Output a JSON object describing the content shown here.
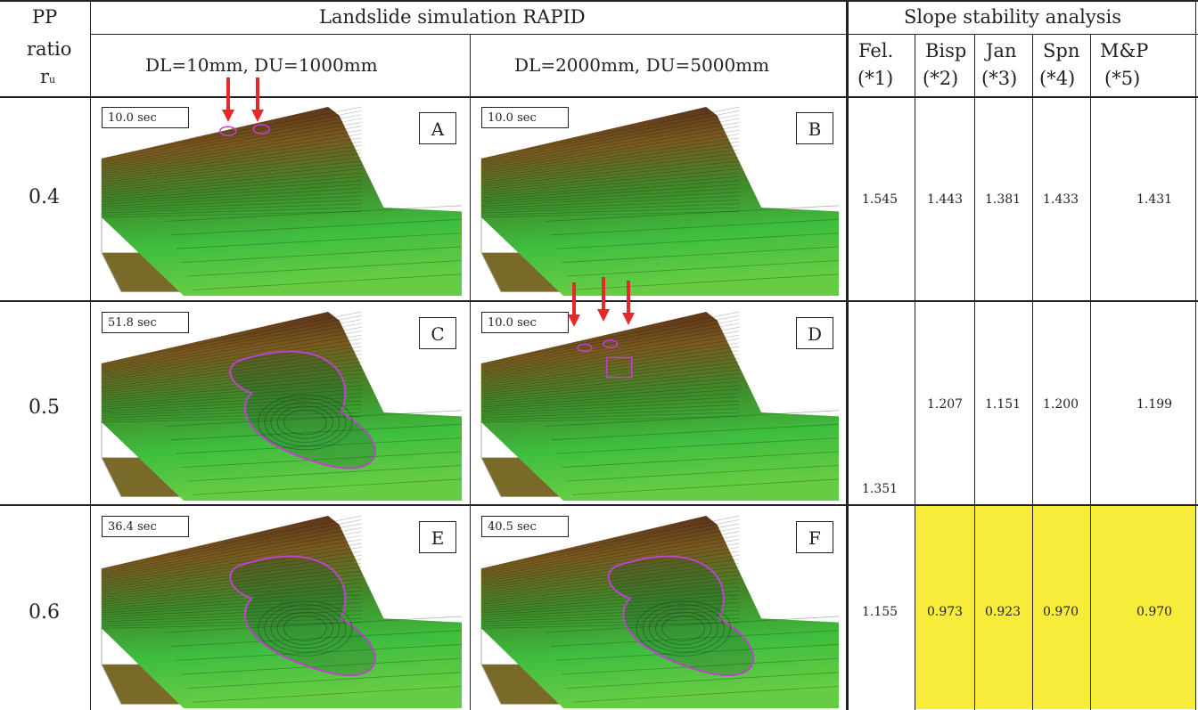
{
  "header": {
    "pp_line1": "PP",
    "pp_line2": "ratio",
    "pp_line3": "r",
    "pp_sub": "u",
    "sim_title": "Landslide simulation RAPID",
    "slope_title": "Slope stability analysis",
    "col_dl1": "DL=10mm, DU=1000mm",
    "col_dl2": "DL=2000mm, DU=5000mm",
    "methods": [
      {
        "name": "Fel.",
        "ref": "(*1)"
      },
      {
        "name": "Bisp",
        "ref": "(*2)"
      },
      {
        "name": "Jan",
        "ref": "(*3)"
      },
      {
        "name": "Spn",
        "ref": "(*4)"
      },
      {
        "name": "M&P",
        "ref": "(*5)"
      }
    ]
  },
  "rows": [
    {
      "ratio": "0.4",
      "panels": [
        {
          "time": "10.0 sec",
          "letter": "A"
        },
        {
          "time": "10.0 sec",
          "letter": "B"
        }
      ],
      "values": [
        "1.545",
        "1.443",
        "1.381",
        "1.433",
        "1.431"
      ]
    },
    {
      "ratio": "0.5",
      "panels": [
        {
          "time": "51.8 sec",
          "letter": "C"
        },
        {
          "time": "10.0 sec",
          "letter": "D"
        }
      ],
      "values": [
        "1.351",
        "1.207",
        "1.151",
        "1.200",
        "1.199"
      ]
    },
    {
      "ratio": "0.6",
      "panels": [
        {
          "time": "36.4 sec",
          "letter": "E"
        },
        {
          "time": "40.5 sec",
          "letter": "F"
        }
      ],
      "values": [
        "1.155",
        "0.973",
        "0.923",
        "0.970",
        "0.970"
      ]
    }
  ],
  "colors": {
    "highlight": "#f7ec3a",
    "arrow": "#e5282a",
    "slip_contour": "#c040d0",
    "slope_green": "#3fbe3f",
    "slope_top": "#4a1e14"
  }
}
